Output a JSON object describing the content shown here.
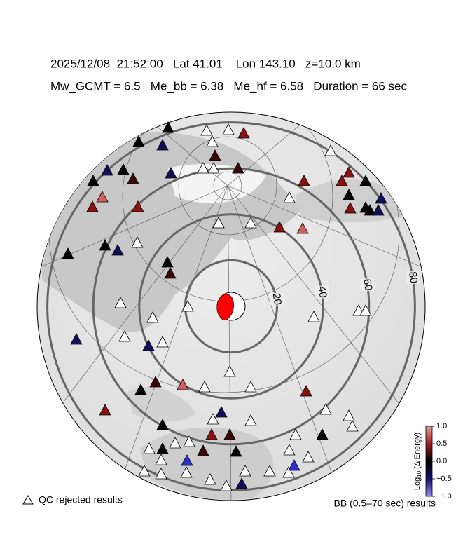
{
  "header": {
    "line1": "2025/12/08  21:52:00   Lat 41.01    Lon 143.10   z=10.0 km",
    "line2": "Mw_GCMT = 6.5   Me_bb = 6.38   Me_hf = 6.58   Duration = 66 sec"
  },
  "map": {
    "distance_rings": [
      20,
      40,
      60,
      80
    ]
  },
  "colorbar": {
    "label_base": "Log",
    "label_sub": "10",
    "label_rest": " (Δ Energy)",
    "lim": [
      -1,
      1
    ],
    "ticks": [
      {
        "value": 1,
        "label": "1.0"
      },
      {
        "value": 0.5,
        "label": "0.5"
      },
      {
        "value": 0,
        "label": "0.0"
      },
      {
        "value": -0.5,
        "label": "−0.5"
      },
      {
        "value": -1,
        "label": "−1.0"
      }
    ]
  },
  "legend": {
    "qc_rejected": "QC rejected results",
    "bb_results": "BB (0.5–70 sec) results"
  }
}
